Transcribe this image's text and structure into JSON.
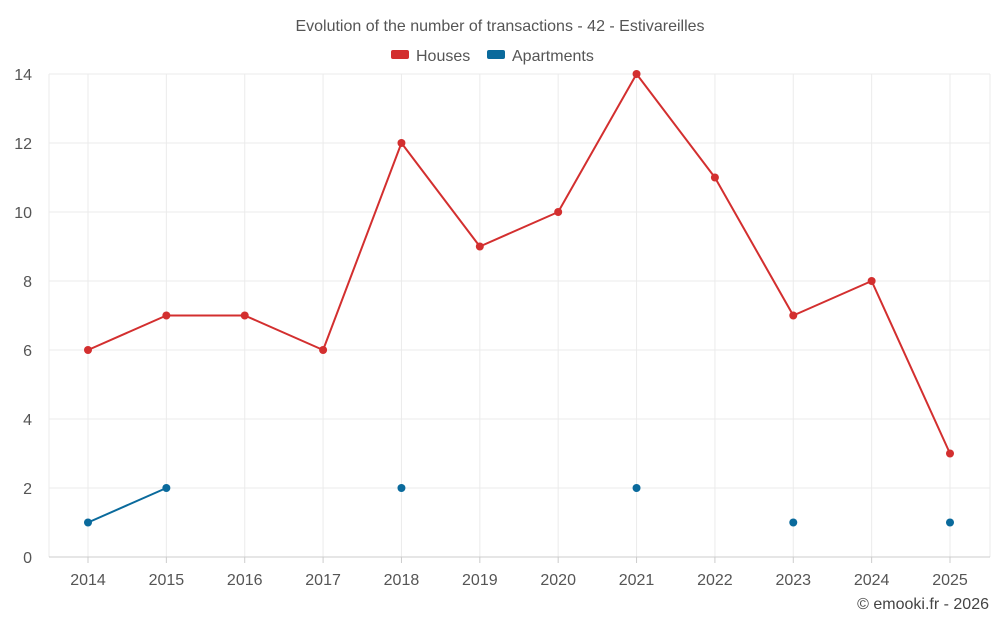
{
  "chart_data": {
    "type": "line",
    "title": "Evolution of the number of transactions - 42 - Estivareilles",
    "xlabel": "",
    "ylabel": "",
    "categories": [
      "2014",
      "2015",
      "2016",
      "2017",
      "2018",
      "2019",
      "2020",
      "2021",
      "2022",
      "2023",
      "2024",
      "2025"
    ],
    "ylim": [
      0,
      14
    ],
    "yticks": [
      0,
      2,
      4,
      6,
      8,
      10,
      12,
      14
    ],
    "grid": true,
    "legend_position": "top-center",
    "series": [
      {
        "name": "Houses",
        "color": "#d32f2f",
        "values": [
          6,
          7,
          7,
          6,
          12,
          9,
          10,
          14,
          11,
          7,
          8,
          3
        ]
      },
      {
        "name": "Apartments",
        "color": "#0a6a9c",
        "values": [
          1,
          2,
          null,
          null,
          2,
          null,
          null,
          2,
          null,
          1,
          null,
          1
        ]
      }
    ]
  },
  "credit": "© emooki.fr - 2026"
}
